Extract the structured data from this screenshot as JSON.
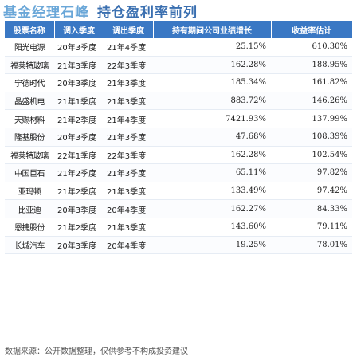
{
  "title": {
    "part1": "基金经理石峰",
    "part2": "持仓盈利率前列"
  },
  "columns": {
    "fund_name": "股票名称",
    "buy_quarter": "调入季度",
    "sell_quarter": "调出季度",
    "company_growth": "持有期间公司业绩增长",
    "return_estimate": "收益率估计"
  },
  "rows": [
    {
      "name": "阳光电源",
      "buy": "20年3季度",
      "sell": "21年4季度",
      "growth": "25.15%",
      "ret": "610.30%"
    },
    {
      "name": "福莱特玻璃",
      "buy": "21年3季度",
      "sell": "22年3季度",
      "growth": "162.28%",
      "ret": "188.95%"
    },
    {
      "name": "宁德时代",
      "buy": "20年3季度",
      "sell": "21年3季度",
      "growth": "185.34%",
      "ret": "161.82%"
    },
    {
      "name": "晶盛机电",
      "buy": "21年1季度",
      "sell": "21年3季度",
      "growth": "883.72%",
      "ret": "146.26%"
    },
    {
      "name": "天赐材料",
      "buy": "21年2季度",
      "sell": "21年4季度",
      "growth": "7421.93%",
      "ret": "137.99%"
    },
    {
      "name": "隆基股份",
      "buy": "20年3季度",
      "sell": "21年3季度",
      "growth": "47.68%",
      "ret": "108.39%"
    },
    {
      "name": "福莱特玻璃",
      "buy": "22年1季度",
      "sell": "22年3季度",
      "growth": "162.28%",
      "ret": "102.54%"
    },
    {
      "name": "中国巨石",
      "buy": "21年2季度",
      "sell": "21年3季度",
      "growth": "65.11%",
      "ret": "97.82%"
    },
    {
      "name": "亚玛顿",
      "buy": "21年2季度",
      "sell": "21年3季度",
      "growth": "133.49%",
      "ret": "97.42%"
    },
    {
      "name": "比亚迪",
      "buy": "20年3季度",
      "sell": "20年4季度",
      "growth": "162.27%",
      "ret": "84.33%"
    },
    {
      "name": "恩捷股份",
      "buy": "21年2季度",
      "sell": "21年3季度",
      "growth": "143.60%",
      "ret": "79.11%"
    },
    {
      "name": "长城汽车",
      "buy": "20年3季度",
      "sell": "20年4季度",
      "growth": "19.25%",
      "ret": "78.01%"
    }
  ],
  "source": "数据来源：公开数据整理，仅供参考不构成投资建议"
}
